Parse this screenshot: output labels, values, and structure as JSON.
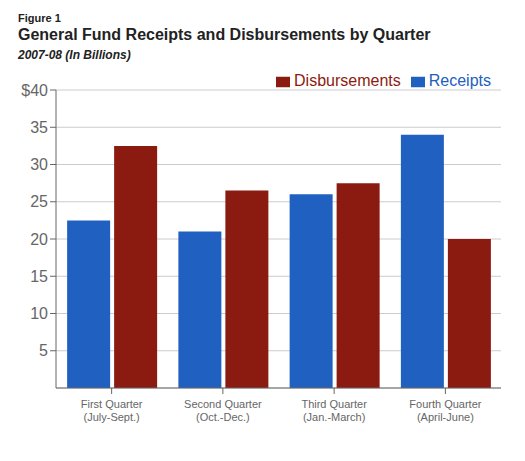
{
  "chart_data": {
    "type": "bar",
    "title": "General Fund Receipts and Disbursements by Quarter",
    "subtitle": "2007-08 (In Billions)",
    "annotations": [
      "Figure 1"
    ],
    "categories": [
      "First Quarter\n(July-Sept.)",
      "Second Quarter\n(Oct.-Dec.)",
      "Third Quarter\n(Jan.-March)",
      "Fourth Quarter\n(April-June)"
    ],
    "series": [
      {
        "name": "Receipts",
        "color": "#2060c0",
        "values": [
          22.5,
          21.0,
          26.0,
          34.0
        ]
      },
      {
        "name": "Disbursements",
        "color": "#8b1a10",
        "values": [
          32.5,
          26.5,
          27.5,
          20.0
        ]
      }
    ],
    "ylim": [
      0,
      40
    ],
    "yticks": [
      5,
      10,
      15,
      20,
      25,
      30,
      35,
      {
        "value": 40,
        "label": "$40"
      }
    ],
    "grid": true,
    "legend": "upper right"
  }
}
